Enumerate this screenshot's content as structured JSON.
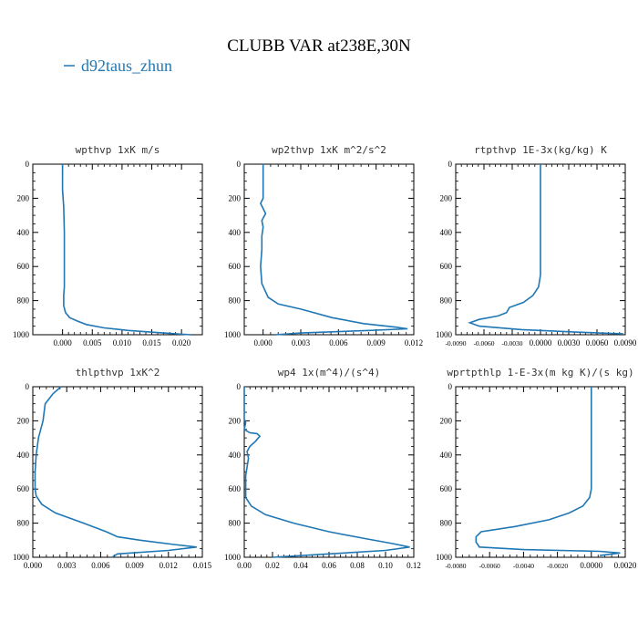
{
  "figure": {
    "title": "CLUBB VAR at238E,30N",
    "legend": {
      "label": "d92taus_zhun",
      "color": "#1f77b4",
      "placement": "top-left"
    },
    "line_color": "#1f77b4"
  },
  "chart_data": [
    {
      "type": "line",
      "title": "wpthvp  1xK m/s",
      "xlim": [
        -0.005,
        0.0235
      ],
      "ylim": [
        1000,
        0
      ],
      "xticks": [
        0.0,
        0.005,
        0.01,
        0.015,
        0.02
      ],
      "xtick_labels": [
        "0.000",
        "0.005",
        "0.010",
        "0.015",
        "0.020"
      ],
      "yticks": [
        0,
        200,
        400,
        600,
        800,
        1000
      ],
      "ytick_labels": [
        "0",
        "200",
        "400",
        "600",
        "800",
        "1000"
      ],
      "series": [
        {
          "x": [
            0.0,
            0.0,
            0.0002,
            0.0003,
            0.0003,
            0.0003,
            0.0003,
            0.0002,
            0.0002,
            0.0005,
            0.0012,
            0.0025,
            0.004,
            0.007,
            0.011,
            0.017,
            0.0215
          ],
          "y": [
            0,
            150,
            250,
            400,
            550,
            650,
            720,
            770,
            830,
            870,
            900,
            920,
            940,
            960,
            975,
            990,
            1000
          ]
        }
      ]
    },
    {
      "type": "line",
      "title": "wp2thvp   1xK m^2/s^2",
      "xlim": [
        -0.0015,
        0.012
      ],
      "ylim": [
        1000,
        0
      ],
      "xticks": [
        0.0,
        0.003,
        0.006,
        0.009,
        0.012
      ],
      "xtick_labels": [
        "0.000",
        "0.003",
        "0.006",
        "0.009",
        "0.012"
      ],
      "yticks": [
        0,
        200,
        400,
        600,
        800,
        1000
      ],
      "ytick_labels": [
        "0",
        "200",
        "400",
        "600",
        "800",
        "1000"
      ],
      "series": [
        {
          "x": [
            0.0,
            0.0,
            -0.0002,
            0.0,
            0.0002,
            -0.0001,
            0.0,
            -0.0001,
            -0.0001,
            -0.0002,
            -0.0001,
            0.0004,
            0.0012,
            0.003,
            0.0055,
            0.008,
            0.0105,
            0.0115,
            0.0085,
            0.003,
            0.001
          ],
          "y": [
            0,
            200,
            230,
            260,
            290,
            330,
            370,
            420,
            500,
            600,
            700,
            780,
            820,
            850,
            900,
            935,
            955,
            965,
            975,
            990,
            1000
          ]
        }
      ]
    },
    {
      "type": "line",
      "title": "rtpthvp   1E-3x(kg/kg) K",
      "xlim": [
        -0.009,
        0.009
      ],
      "ylim": [
        1000,
        0
      ],
      "xticks": [
        -0.009,
        -0.006,
        -0.003,
        0.0,
        0.003,
        0.006,
        0.009
      ],
      "xtick_labels": [
        "-0.0090",
        "-0.0060",
        "-0.0030",
        "0.0000",
        "0.0030",
        "0.0060",
        "0.0090"
      ],
      "yticks": [
        0,
        200,
        400,
        600,
        800,
        1000
      ],
      "ytick_labels": [
        "0",
        "200",
        "400",
        "600",
        "800",
        "1000"
      ],
      "series": [
        {
          "x": [
            0.0,
            0.0,
            0.0,
            0.0,
            -0.0002,
            -0.0008,
            -0.0018,
            -0.0033,
            -0.0036,
            -0.0045,
            -0.0065,
            -0.0075,
            -0.0065,
            -0.002,
            0.004,
            0.0088
          ],
          "y": [
            0,
            300,
            500,
            650,
            720,
            770,
            810,
            840,
            870,
            890,
            910,
            930,
            950,
            970,
            985,
            995
          ]
        }
      ]
    },
    {
      "type": "line",
      "title": "thlpthvp   1xK^2",
      "xlim": [
        0.0,
        0.015
      ],
      "ylim": [
        1000,
        0
      ],
      "xticks": [
        0.0,
        0.003,
        0.006,
        0.009,
        0.012,
        0.015
      ],
      "xtick_labels": [
        "0.000",
        "0.003",
        "0.006",
        "0.009",
        "0.012",
        "0.015"
      ],
      "yticks": [
        0,
        200,
        400,
        600,
        800,
        1000
      ],
      "ytick_labels": [
        "0",
        "200",
        "400",
        "600",
        "800",
        "1000"
      ],
      "series": [
        {
          "x": [
            0.0025,
            0.0018,
            0.0011,
            0.0009,
            0.0005,
            0.0003,
            0.0002,
            0.0002,
            0.0003,
            0.0008,
            0.002,
            0.0045,
            0.0065,
            0.0075,
            0.0095,
            0.0125,
            0.0145,
            0.012,
            0.0075,
            0.007
          ],
          "y": [
            0,
            40,
            100,
            200,
            300,
            400,
            500,
            600,
            640,
            690,
            740,
            800,
            850,
            880,
            900,
            925,
            940,
            960,
            980,
            1000
          ]
        }
      ]
    },
    {
      "type": "line",
      "title": "wp4   1x(m^4)/(s^4)",
      "xlim": [
        0.0,
        0.12
      ],
      "ylim": [
        1000,
        0
      ],
      "xticks": [
        0.0,
        0.02,
        0.04,
        0.06,
        0.08,
        0.1,
        0.12
      ],
      "xtick_labels": [
        "0.00",
        "0.02",
        "0.04",
        "0.06",
        "0.08",
        "0.10",
        "0.12"
      ],
      "yticks": [
        0,
        200,
        400,
        600,
        800,
        1000
      ],
      "ytick_labels": [
        "0",
        "200",
        "400",
        "600",
        "800",
        "1000"
      ],
      "series": [
        {
          "x": [
            0.0,
            0.0,
            0.001,
            0.0,
            0.004,
            0.009,
            0.011,
            0.008,
            0.004,
            0.002,
            0.003,
            0.002,
            0.001,
            0.001,
            0.001,
            0.005,
            0.015,
            0.035,
            0.06,
            0.085,
            0.105,
            0.117,
            0.1,
            0.06,
            0.02
          ],
          "y": [
            0,
            190,
            210,
            250,
            270,
            275,
            290,
            320,
            350,
            380,
            420,
            470,
            520,
            600,
            650,
            700,
            750,
            800,
            850,
            890,
            920,
            940,
            960,
            980,
            1000
          ]
        }
      ]
    },
    {
      "type": "line",
      "title": "wprtpthlp   1-E-3x(m kg K)/(s kg)",
      "xlim": [
        -0.008,
        0.002
      ],
      "ylim": [
        1000,
        0
      ],
      "xticks": [
        -0.008,
        -0.006,
        -0.004,
        -0.002,
        0.0,
        0.002
      ],
      "xtick_labels": [
        "-0.0080",
        "-0.0060",
        "-0.0040",
        "-0.0020",
        "0.0000",
        "0.0020"
      ],
      "yticks": [
        0,
        200,
        400,
        600,
        800,
        1000
      ],
      "ytick_labels": [
        "0",
        "200",
        "400",
        "600",
        "800",
        "1000"
      ],
      "series": [
        {
          "x": [
            0.0,
            0.0,
            0.0,
            -0.0001,
            -0.0005,
            -0.0013,
            -0.0025,
            -0.0045,
            -0.0065,
            -0.0068,
            -0.0068,
            -0.0066,
            -0.004,
            0.0005,
            0.0017,
            0.0005
          ],
          "y": [
            0,
            300,
            600,
            650,
            700,
            740,
            780,
            820,
            850,
            880,
            910,
            940,
            955,
            965,
            975,
            990
          ]
        }
      ]
    }
  ]
}
